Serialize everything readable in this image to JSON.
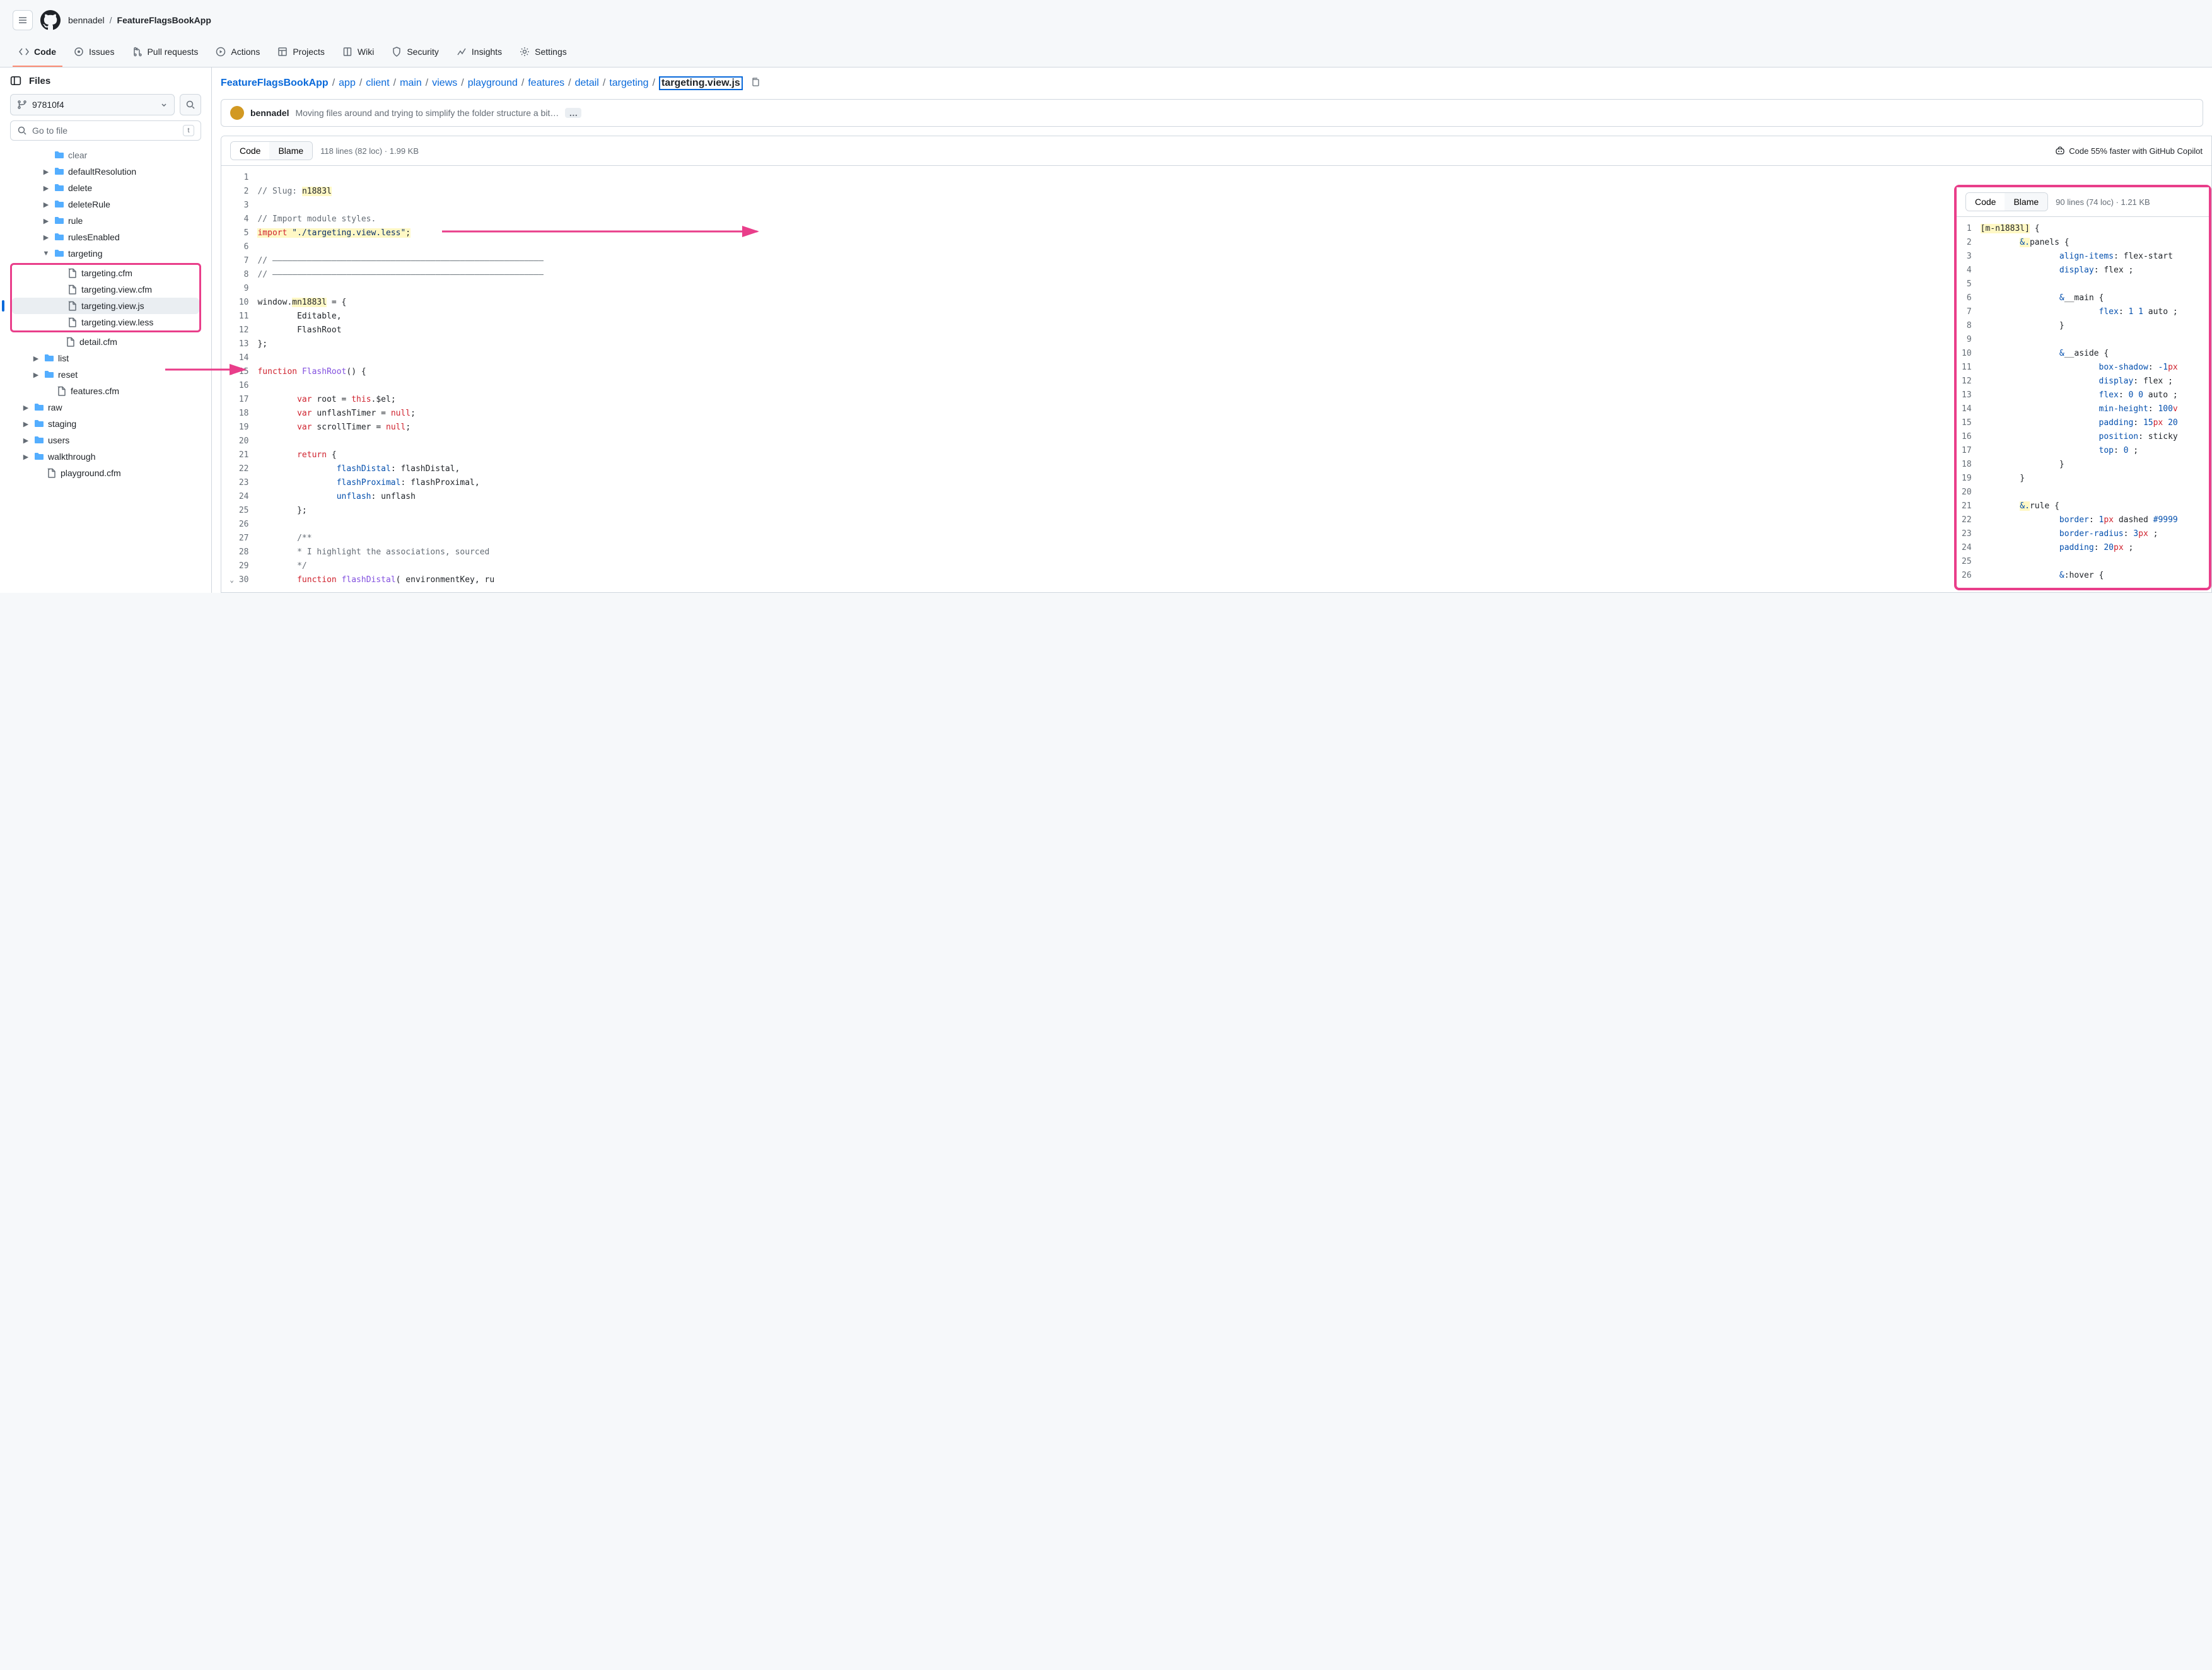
{
  "colors": {
    "accent": "#0969da",
    "highlight_border": "#e93e8a",
    "code_highlight": "#fff8c5",
    "folder": "#54aeff"
  },
  "topbar": {
    "owner": "bennadel",
    "repo": "FeatureFlagsBookApp"
  },
  "tabs": [
    {
      "id": "code",
      "label": "Code",
      "active": true
    },
    {
      "id": "issues",
      "label": "Issues"
    },
    {
      "id": "pulls",
      "label": "Pull requests"
    },
    {
      "id": "actions",
      "label": "Actions"
    },
    {
      "id": "projects",
      "label": "Projects"
    },
    {
      "id": "wiki",
      "label": "Wiki"
    },
    {
      "id": "security",
      "label": "Security"
    },
    {
      "id": "insights",
      "label": "Insights"
    },
    {
      "id": "settings",
      "label": "Settings"
    }
  ],
  "sidebar": {
    "title": "Files",
    "branch": "97810f4",
    "goto_placeholder": "Go to file",
    "goto_key": "t",
    "tree": {
      "partial_top": "clear",
      "dirs_l1": [
        "defaultResolution",
        "delete",
        "deleteRule",
        "rule",
        "rulesEnabled"
      ],
      "expanded_dir": "targeting",
      "targeting_files": [
        "targeting.cfm",
        "targeting.view.cfm",
        "targeting.view.js",
        "targeting.view.less"
      ],
      "selected_file": "targeting.view.js",
      "post_targeting_file": "detail.cfm",
      "dirs_l0": [
        "list",
        "reset"
      ],
      "l0_file": "features.cfm",
      "dirs_root": [
        "raw",
        "staging",
        "users",
        "walkthrough"
      ],
      "root_file": "playground.cfm"
    }
  },
  "path": {
    "parts": [
      "FeatureFlagsBookApp",
      "app",
      "client",
      "main",
      "views",
      "playground",
      "features",
      "detail",
      "targeting"
    ],
    "current": "targeting.view.js"
  },
  "commit": {
    "author": "bennadel",
    "message": "Moving files around and trying to simplify the folder structure a bit…"
  },
  "code_header": {
    "code_label": "Code",
    "blame_label": "Blame",
    "meta": "118 lines (82 loc) · 1.99 KB",
    "copilot": "Code 55% faster with GitHub Copilot"
  },
  "js": {
    "lines": [
      {
        "n": 1,
        "raw": ""
      },
      {
        "n": 2,
        "tokens": [
          [
            "cm",
            "// Slug: "
          ],
          [
            "hl",
            "n1883l"
          ]
        ]
      },
      {
        "n": 3,
        "raw": ""
      },
      {
        "n": 4,
        "tokens": [
          [
            "cm",
            "// Import module styles."
          ]
        ]
      },
      {
        "n": 5,
        "tokens": [
          [
            "hlkw",
            "import"
          ],
          [
            "hlstr",
            " \"./targeting.view.less\""
          ],
          [
            "hl",
            ";"
          ]
        ]
      },
      {
        "n": 6,
        "raw": ""
      },
      {
        "n": 7,
        "tokens": [
          [
            "cm",
            "// ———————————————————————————————————————————————————————"
          ]
        ]
      },
      {
        "n": 8,
        "tokens": [
          [
            "cm",
            "// ———————————————————————————————————————————————————————"
          ]
        ]
      },
      {
        "n": 9,
        "raw": ""
      },
      {
        "n": 10,
        "tokens": [
          [
            "",
            "window."
          ],
          [
            "hl",
            "mn1883l"
          ],
          [
            "",
            " = {"
          ]
        ]
      },
      {
        "n": 11,
        "tokens": [
          [
            "",
            "        Editable,"
          ]
        ]
      },
      {
        "n": 12,
        "tokens": [
          [
            "",
            "        FlashRoot"
          ]
        ]
      },
      {
        "n": 13,
        "tokens": [
          [
            "",
            "};"
          ]
        ]
      },
      {
        "n": 14,
        "raw": ""
      },
      {
        "n": 15,
        "fold": true,
        "tokens": [
          [
            "kw",
            "function"
          ],
          [
            "",
            " "
          ],
          [
            "fn",
            "FlashRoot"
          ],
          [
            "",
            "() {"
          ]
        ]
      },
      {
        "n": 16,
        "raw": ""
      },
      {
        "n": 17,
        "tokens": [
          [
            "",
            "        "
          ],
          [
            "kw",
            "var"
          ],
          [
            "",
            " root = "
          ],
          [
            "kw",
            "this"
          ],
          [
            "",
            ".$el;"
          ]
        ]
      },
      {
        "n": 18,
        "tokens": [
          [
            "",
            "        "
          ],
          [
            "kw",
            "var"
          ],
          [
            "",
            " unflashTimer = "
          ],
          [
            "kw",
            "null"
          ],
          [
            "",
            ";"
          ]
        ]
      },
      {
        "n": 19,
        "tokens": [
          [
            "",
            "        "
          ],
          [
            "kw",
            "var"
          ],
          [
            "",
            " scrollTimer = "
          ],
          [
            "kw",
            "null"
          ],
          [
            "",
            ";"
          ]
        ]
      },
      {
        "n": 20,
        "raw": ""
      },
      {
        "n": 21,
        "tokens": [
          [
            "",
            "        "
          ],
          [
            "kw",
            "return"
          ],
          [
            "",
            " {"
          ]
        ]
      },
      {
        "n": 22,
        "tokens": [
          [
            "",
            "                "
          ],
          [
            "prop",
            "flashDistal"
          ],
          [
            "",
            ": flashDistal,"
          ]
        ]
      },
      {
        "n": 23,
        "tokens": [
          [
            "",
            "                "
          ],
          [
            "prop",
            "flashProximal"
          ],
          [
            "",
            ": flashProximal,"
          ]
        ]
      },
      {
        "n": 24,
        "tokens": [
          [
            "",
            "                "
          ],
          [
            "prop",
            "unflash"
          ],
          [
            "",
            ": unflash"
          ]
        ]
      },
      {
        "n": 25,
        "tokens": [
          [
            "",
            "        };"
          ]
        ]
      },
      {
        "n": 26,
        "raw": ""
      },
      {
        "n": 27,
        "tokens": [
          [
            "",
            "        "
          ],
          [
            "cm",
            "/**"
          ]
        ]
      },
      {
        "n": 28,
        "tokens": [
          [
            "",
            "        "
          ],
          [
            "cm",
            "* I highlight the associations, sourced"
          ]
        ]
      },
      {
        "n": 29,
        "tokens": [
          [
            "",
            "        "
          ],
          [
            "cm",
            "*/"
          ]
        ]
      },
      {
        "n": 30,
        "fold": true,
        "tokens": [
          [
            "",
            "        "
          ],
          [
            "kw",
            "function"
          ],
          [
            "",
            " "
          ],
          [
            "fn",
            "flashDistal"
          ],
          [
            "",
            "( environmentKey, ru"
          ]
        ]
      }
    ]
  },
  "inset_header": {
    "code_label": "Code",
    "blame_label": "Blame",
    "meta": "90 lines (74 loc) · 1.21 KB"
  },
  "less": {
    "lines": [
      {
        "n": 1,
        "tokens": [
          [
            "hl",
            "[m-n1883l]"
          ],
          [
            "",
            " {"
          ]
        ]
      },
      {
        "n": 2,
        "tokens": [
          [
            "",
            "        "
          ],
          [
            "hlamp",
            "&."
          ],
          [
            "sel",
            "panels {"
          ]
        ]
      },
      {
        "n": 3,
        "tokens": [
          [
            "",
            "                "
          ],
          [
            "cssp",
            "align-items"
          ],
          [
            "",
            ": flex-start "
          ]
        ]
      },
      {
        "n": 4,
        "tokens": [
          [
            "",
            "                "
          ],
          [
            "cssp",
            "display"
          ],
          [
            "",
            ": flex ;"
          ]
        ]
      },
      {
        "n": 5,
        "raw": ""
      },
      {
        "n": 6,
        "tokens": [
          [
            "",
            "                "
          ],
          [
            "amp",
            "&"
          ],
          [
            "sel",
            "__main {"
          ]
        ]
      },
      {
        "n": 7,
        "tokens": [
          [
            "",
            "                        "
          ],
          [
            "cssp",
            "flex"
          ],
          [
            "",
            ": "
          ],
          [
            "num",
            "1 1"
          ],
          [
            "",
            " auto ;"
          ]
        ]
      },
      {
        "n": 8,
        "tokens": [
          [
            "",
            "                }"
          ]
        ]
      },
      {
        "n": 9,
        "raw": ""
      },
      {
        "n": 10,
        "tokens": [
          [
            "",
            "                "
          ],
          [
            "amp",
            "&"
          ],
          [
            "sel",
            "__aside {"
          ]
        ]
      },
      {
        "n": 11,
        "tokens": [
          [
            "",
            "                        "
          ],
          [
            "cssp",
            "box-shadow"
          ],
          [
            "",
            ": "
          ],
          [
            "num",
            "-1"
          ],
          [
            "cssv",
            "px"
          ]
        ]
      },
      {
        "n": 12,
        "tokens": [
          [
            "",
            "                        "
          ],
          [
            "cssp",
            "display"
          ],
          [
            "",
            ": flex ;"
          ]
        ]
      },
      {
        "n": 13,
        "tokens": [
          [
            "",
            "                        "
          ],
          [
            "cssp",
            "flex"
          ],
          [
            "",
            ": "
          ],
          [
            "num",
            "0 0"
          ],
          [
            "",
            " auto ;"
          ]
        ]
      },
      {
        "n": 14,
        "tokens": [
          [
            "",
            "                        "
          ],
          [
            "cssp",
            "min-height"
          ],
          [
            "",
            ": "
          ],
          [
            "num",
            "100"
          ],
          [
            "cssv",
            "v"
          ]
        ]
      },
      {
        "n": 15,
        "tokens": [
          [
            "",
            "                        "
          ],
          [
            "cssp",
            "padding"
          ],
          [
            "",
            ": "
          ],
          [
            "num",
            "15"
          ],
          [
            "cssv",
            "px "
          ],
          [
            "num",
            "20"
          ]
        ]
      },
      {
        "n": 16,
        "tokens": [
          [
            "",
            "                        "
          ],
          [
            "cssp",
            "position"
          ],
          [
            "",
            ": sticky"
          ]
        ]
      },
      {
        "n": 17,
        "tokens": [
          [
            "",
            "                        "
          ],
          [
            "cssp",
            "top"
          ],
          [
            "",
            ": "
          ],
          [
            "num",
            "0"
          ],
          [
            "",
            " ;"
          ]
        ]
      },
      {
        "n": 18,
        "tokens": [
          [
            "",
            "                }"
          ]
        ]
      },
      {
        "n": 19,
        "tokens": [
          [
            "",
            "        }"
          ]
        ]
      },
      {
        "n": 20,
        "raw": ""
      },
      {
        "n": 21,
        "tokens": [
          [
            "",
            "        "
          ],
          [
            "hlamp",
            "&."
          ],
          [
            "sel",
            "rule {"
          ]
        ]
      },
      {
        "n": 22,
        "tokens": [
          [
            "",
            "                "
          ],
          [
            "cssp",
            "border"
          ],
          [
            "",
            ": "
          ],
          [
            "num",
            "1"
          ],
          [
            "cssv",
            "px"
          ],
          [
            "",
            " dashed "
          ],
          [
            "num",
            "#9999"
          ]
        ]
      },
      {
        "n": 23,
        "tokens": [
          [
            "",
            "                "
          ],
          [
            "cssp",
            "border-radius"
          ],
          [
            "",
            ": "
          ],
          [
            "num",
            "3"
          ],
          [
            "cssv",
            "px"
          ],
          [
            "",
            " ;"
          ]
        ]
      },
      {
        "n": 24,
        "tokens": [
          [
            "",
            "                "
          ],
          [
            "cssp",
            "padding"
          ],
          [
            "",
            ": "
          ],
          [
            "num",
            "20"
          ],
          [
            "cssv",
            "px"
          ],
          [
            "",
            " ;"
          ]
        ]
      },
      {
        "n": 25,
        "raw": ""
      },
      {
        "n": 26,
        "tokens": [
          [
            "",
            "                "
          ],
          [
            "amp",
            "&"
          ],
          [
            "sel",
            ":hover {"
          ]
        ]
      }
    ]
  }
}
